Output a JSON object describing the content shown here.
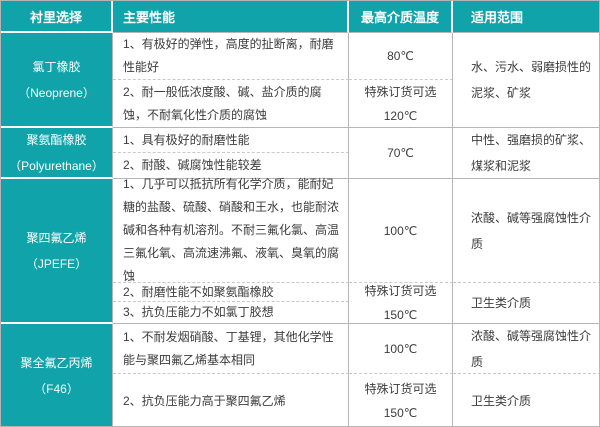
{
  "header": {
    "lining": "衬里选择",
    "performance": "主要性能",
    "max_temp": "最高介质温度",
    "range": "适用范围"
  },
  "colors": {
    "teal": "#10a3a9",
    "border_gray": "#b5b5b5",
    "dashed_gray": "#c9c9c9",
    "body_text": "#3c3c3c",
    "header_text": "#ffffff"
  },
  "groups": [
    {
      "name": "氯丁橡胶",
      "latin": "（Neoprene）",
      "perf1": "1、有极好的弹性，高度的扯断离，耐磨性能好",
      "temp1": "80℃",
      "perf2": "2、耐一般低浓度酸、碱、盐介质的腐蚀，不耐氧化性介质的腐蚀",
      "temp2": "特殊订货可选\n120℃",
      "range": "水、污水、弱磨损性的泥浆、矿浆"
    },
    {
      "name": "聚氨酯橡胶",
      "latin": "（Polyurethane）",
      "perf1": "1、具有极好的耐磨性能",
      "perf2": "2、耐酸、碱腐蚀性能较差",
      "temp": "70℃",
      "range": "中性、强磨损的矿浆、煤浆和泥浆"
    },
    {
      "name": "聚四氟乙烯",
      "latin": "（JPEFE）",
      "perf1": "1、几乎可以抵抗所有化学介质，能耐妃糖的盐酸、硫酸、硝酸和王水，也能耐浓碱和各种有机溶剂。不耐三氟化氯、高温三氟化氧、高流速沸氟、液氧、臭氧的腐蚀",
      "temp1": "100℃",
      "range1": "浓酸、碱等强腐蚀性介质",
      "perf2": "2、耐磨性能不如聚氨酯橡胶",
      "perf3": "3、抗负压能力不如氯丁胶想",
      "temp23": "特殊订货可选\n150℃",
      "range23": "卫生类介质"
    },
    {
      "name": "聚全氟乙丙烯",
      "latin": "（F46）",
      "perf1": "1、不耐发烟硝酸、丁基锂，其他化学性能与聚四氟乙烯基本相同",
      "temp1": "100℃",
      "range1": "浓酸、碱等强腐蚀性介质",
      "perf2": "2、抗负压能力高于聚四氟乙烯",
      "temp2": "特殊订货可选\n150℃",
      "range2": "卫生类介质"
    }
  ]
}
